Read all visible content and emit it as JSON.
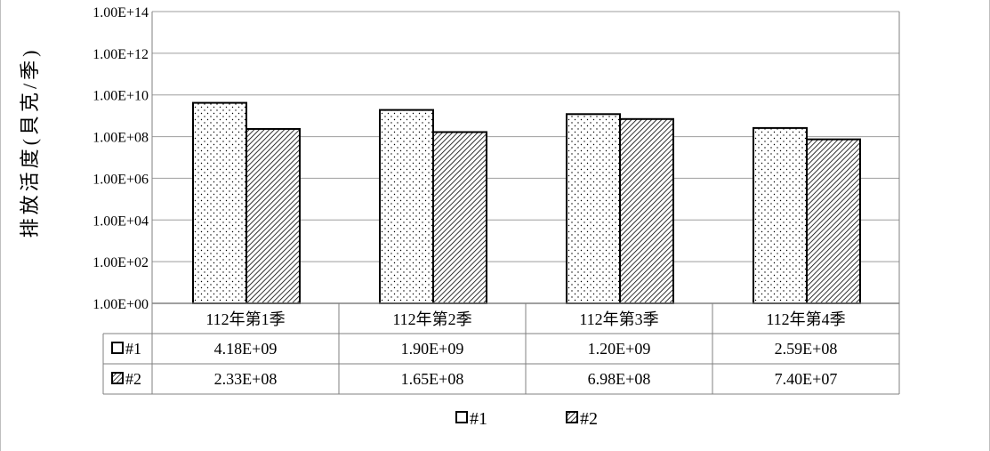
{
  "chart_data": {
    "type": "bar",
    "title": "",
    "xlabel": "",
    "ylabel": "排放活度(貝克/季)",
    "yscale": "log",
    "ylim": [
      1,
      100000000000000.0
    ],
    "y_ticks": [
      1,
      100.0,
      10000.0,
      1000000.0,
      100000000.0,
      10000000000.0,
      1000000000000.0,
      100000000000000.0
    ],
    "y_tick_labels": [
      "1.00E+00",
      "1.00E+02",
      "1.00E+04",
      "1.00E+06",
      "1.00E+08",
      "1.00E+10",
      "1.00E+12",
      "1.00E+14"
    ],
    "categories": [
      "112年第1季",
      "112年第2季",
      "112年第3季",
      "112年第4季"
    ],
    "series": [
      {
        "name": "#1",
        "values": [
          4180000000.0,
          1900000000.0,
          1200000000.0,
          259000000.0
        ],
        "labels": [
          "4.18E+09",
          "1.90E+09",
          "1.20E+09",
          "2.59E+08"
        ],
        "pattern": "dots"
      },
      {
        "name": "#2",
        "values": [
          233000000.0,
          165000000.0,
          698000000.0,
          74000000.0
        ],
        "labels": [
          "2.33E+08",
          "1.65E+08",
          "6.98E+08",
          "7.40E+07"
        ],
        "pattern": "diagonal-hatch"
      }
    ],
    "grid": true,
    "data_table": true,
    "legend_position": "bottom",
    "colors": {
      "bar_fill": "#ffffff",
      "bar_stroke": "#000000",
      "grid": "#9e9e9e",
      "axis": "#808080"
    }
  }
}
